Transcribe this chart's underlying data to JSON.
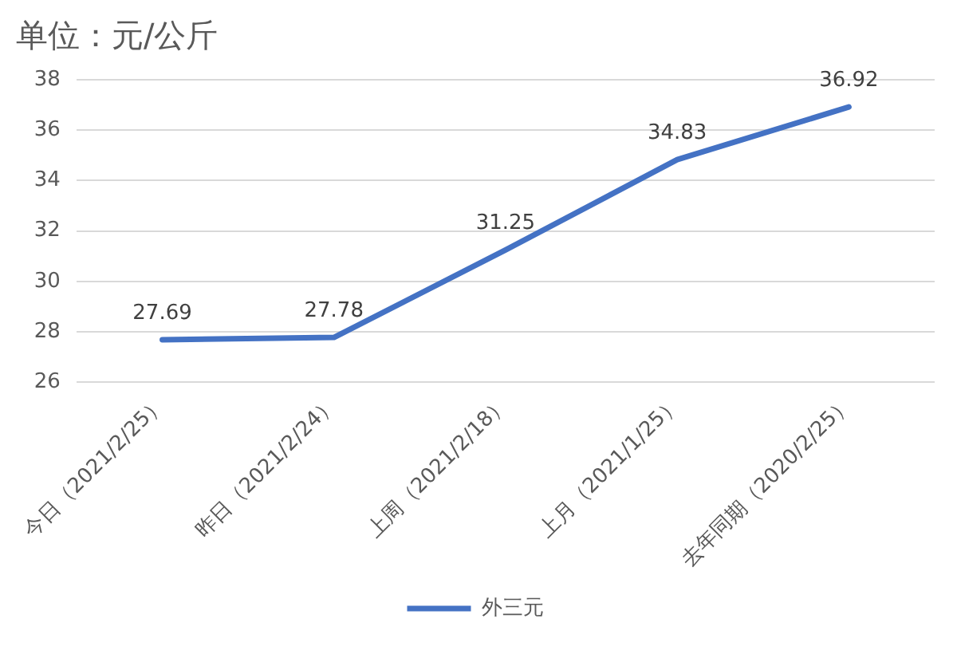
{
  "chart_data": {
    "type": "line",
    "title": "单位：元/公斤",
    "categories": [
      "今日（2021/2/25）",
      "昨日（2021/2/24）",
      "上周（2021/2/18）",
      "上月（2021/1/25）",
      "去年同期（2020/2/25）"
    ],
    "series": [
      {
        "name": "外三元",
        "color": "#4472c4",
        "values": [
          27.69,
          27.78,
          31.25,
          34.83,
          36.92
        ]
      }
    ],
    "ylim": [
      26,
      38
    ],
    "yticks": [
      26,
      28,
      30,
      32,
      34,
      36,
      38
    ],
    "grid": "y",
    "legend": "bottom",
    "data_labels": true,
    "marker": "none"
  }
}
